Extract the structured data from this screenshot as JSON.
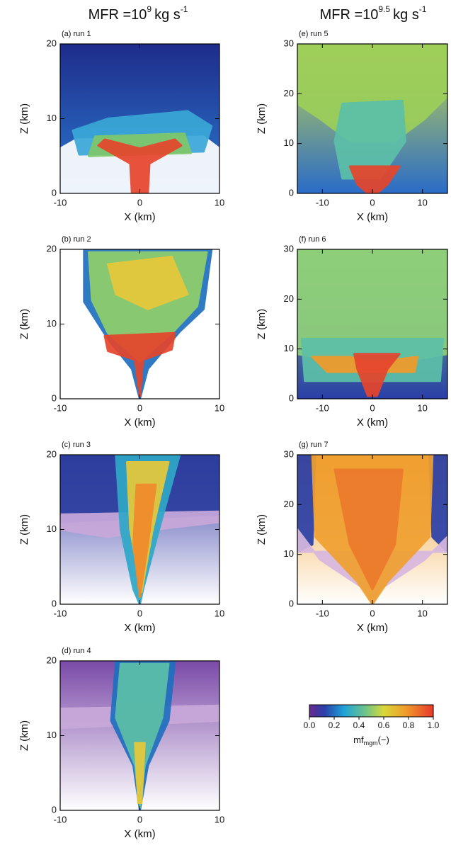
{
  "columns": [
    {
      "title": {
        "base": "MFR =10",
        "exp": "9",
        "unit": "kg s",
        "unit_exp": "-1"
      },
      "panels": [
        {
          "label": "(a) run 1",
          "xlabel": "X (km)",
          "ylabel": "Z (km)",
          "xlim": [
            -10,
            10
          ],
          "ylim": [
            0,
            20
          ],
          "xticks": [
            -10,
            0,
            10
          ],
          "yticks": [
            0,
            10,
            20
          ]
        },
        {
          "label": "(b) run 2",
          "xlabel": "X (km)",
          "ylabel": "Z (km)",
          "xlim": [
            -10,
            10
          ],
          "ylim": [
            0,
            20
          ],
          "xticks": [
            -10,
            0,
            10
          ],
          "yticks": [
            0,
            10,
            20
          ]
        },
        {
          "label": "(c) run 3",
          "xlabel": "X (km)",
          "ylabel": "Z (km)",
          "xlim": [
            -10,
            10
          ],
          "ylim": [
            0,
            20
          ],
          "xticks": [
            -10,
            0,
            10
          ],
          "yticks": [
            0,
            10,
            20
          ]
        },
        {
          "label": "(d) run 4",
          "xlabel": "X (km)",
          "ylabel": "Z (km)",
          "xlim": [
            -10,
            10
          ],
          "ylim": [
            0,
            20
          ],
          "xticks": [
            -10,
            0,
            10
          ],
          "yticks": [
            0,
            10,
            20
          ]
        }
      ]
    },
    {
      "title": {
        "base": "MFR =10",
        "exp": "9.5",
        "unit": "kg s",
        "unit_exp": "-1"
      },
      "panels": [
        {
          "label": "(e) run 5",
          "xlabel": "X (km)",
          "ylabel": "Z (km)",
          "xlim": [
            -15,
            15
          ],
          "ylim": [
            0,
            30
          ],
          "xticks": [
            -10,
            0,
            10
          ],
          "yticks": [
            0,
            10,
            20,
            30
          ]
        },
        {
          "label": "(f) run 6",
          "xlabel": "X (km)",
          "ylabel": "Z (km)",
          "xlim": [
            -15,
            15
          ],
          "ylim": [
            0,
            30
          ],
          "xticks": [
            -10,
            0,
            10
          ],
          "yticks": [
            0,
            10,
            20,
            30
          ]
        },
        {
          "label": "(g) run 7",
          "xlabel": "X (km)",
          "ylabel": "Z (km)",
          "xlim": [
            -15,
            15
          ],
          "ylim": [
            0,
            30
          ],
          "xticks": [
            -10,
            0,
            10
          ],
          "yticks": [
            0,
            10,
            20,
            30
          ]
        }
      ]
    }
  ],
  "colorbar": {
    "lim": [
      0,
      1
    ],
    "ticks": [
      {
        "value": 0,
        "label": "0.0"
      },
      {
        "value": 0.2,
        "label": "0.2"
      },
      {
        "value": 0.4,
        "label": "0.4"
      },
      {
        "value": 0.6,
        "label": "0.6"
      },
      {
        "value": 0.8,
        "label": "0.8"
      },
      {
        "value": 1,
        "label": "1.0"
      }
    ],
    "label": {
      "base": "mf",
      "sub": "mgm",
      "suffix": "(−)"
    }
  }
}
